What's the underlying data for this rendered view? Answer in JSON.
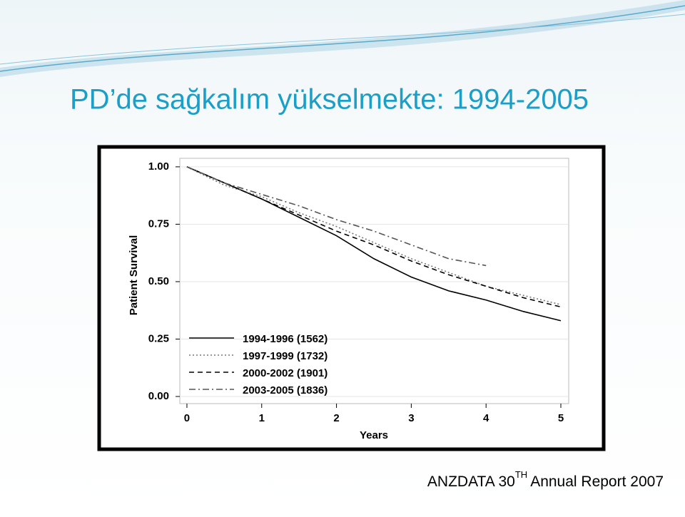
{
  "title": "PD’de sağkalım yükselmekte: 1994-2005",
  "footer": {
    "source": "ANZDATA 30",
    "superscript": "TH",
    "rest": "Annual Report 2007"
  },
  "chart_data": {
    "type": "line",
    "x_label": "Years",
    "y_label": "Patient Survival",
    "x": [
      0,
      0.5,
      1,
      1.5,
      2,
      2.5,
      3,
      3.5,
      4,
      4.5,
      5
    ],
    "series": [
      {
        "name": "1994-1996 (1562)",
        "color": "#000000",
        "style": "solid",
        "values": [
          1.0,
          0.93,
          0.86,
          0.78,
          0.7,
          0.6,
          0.52,
          0.46,
          0.42,
          0.37,
          0.33
        ]
      },
      {
        "name": "1997-1999 (1732)",
        "color": "#777777",
        "style": "dotted",
        "values": [
          1.0,
          0.92,
          0.87,
          0.8,
          0.74,
          0.67,
          0.6,
          0.54,
          0.48,
          0.44,
          0.4
        ]
      },
      {
        "name": "2000-2002 (1901)",
        "color": "#000000",
        "style": "dashed",
        "values": [
          1.0,
          0.93,
          0.86,
          0.79,
          0.72,
          0.66,
          0.59,
          0.53,
          0.48,
          0.43,
          0.39
        ]
      },
      {
        "name": "2003-2005 (1836)",
        "color": "#555555",
        "style": "dashdot",
        "values": [
          1.0,
          0.93,
          0.88,
          0.83,
          0.77,
          0.72,
          0.66,
          0.6,
          0.57,
          null,
          null
        ]
      }
    ],
    "xlim": [
      -0.095,
      5.105
    ],
    "ylim": [
      -0.031,
      1.037
    ],
    "xticks": [
      0,
      1,
      2,
      3,
      4,
      5
    ],
    "yticks": [
      {
        "value": 0,
        "label": "0.00"
      },
      0.25,
      {
        "value": 0.5,
        "label": "0.50"
      },
      0.75,
      {
        "value": 1,
        "label": "1.00"
      }
    ],
    "grid": true,
    "legend": "bottom-left"
  }
}
